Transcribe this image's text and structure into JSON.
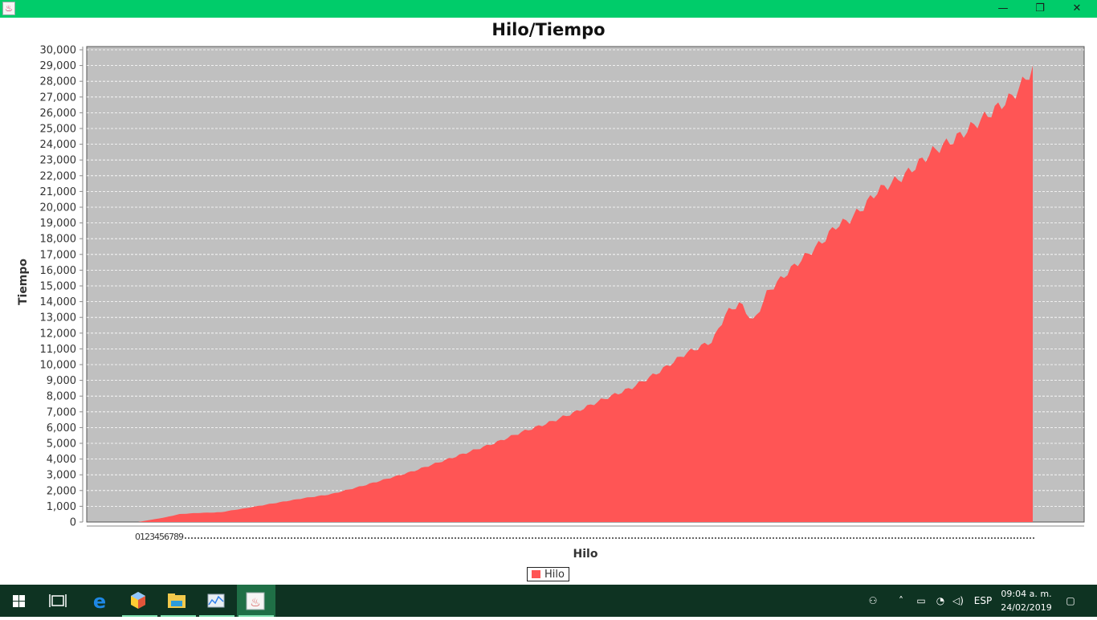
{
  "window": {
    "title": "",
    "minimize_label": "—",
    "restore_label": "❐",
    "close_label": "✕"
  },
  "chart_data": {
    "type": "area",
    "title": "Hilo/Tiempo",
    "xlabel": "Hilo",
    "ylabel": "Tiempo",
    "ylim": [
      0,
      30000
    ],
    "ytick_step": 1000,
    "grid": true,
    "legend_position": "bottom",
    "x_tick_labels": [
      "0",
      "1",
      "2",
      "3",
      "4",
      "5",
      "6",
      "7",
      "8",
      "9"
    ],
    "series": [
      {
        "name": "Hilo",
        "color": "#ff5555",
        "x_start": 0,
        "x_end": 259,
        "anchors": [
          [
            0,
            0
          ],
          [
            10,
            300
          ],
          [
            15,
            500
          ],
          [
            20,
            560
          ],
          [
            30,
            620
          ],
          [
            40,
            900
          ],
          [
            50,
            1200
          ],
          [
            60,
            1500
          ],
          [
            70,
            1750
          ],
          [
            80,
            2200
          ],
          [
            90,
            2700
          ],
          [
            100,
            3200
          ],
          [
            110,
            3800
          ],
          [
            120,
            4400
          ],
          [
            130,
            5000
          ],
          [
            140,
            5700
          ],
          [
            150,
            6300
          ],
          [
            160,
            7000
          ],
          [
            170,
            7800
          ],
          [
            180,
            8500
          ],
          [
            190,
            9500
          ],
          [
            200,
            10700
          ],
          [
            210,
            11500
          ],
          [
            215,
            13300
          ],
          [
            220,
            13900
          ],
          [
            225,
            12700
          ],
          [
            230,
            14600
          ],
          [
            240,
            16300
          ],
          [
            250,
            17800
          ],
          [
            255,
            18800
          ],
          [
            260,
            19200
          ],
          [
            265,
            20000
          ],
          [
            270,
            21000
          ],
          [
            280,
            22000
          ],
          [
            290,
            23500
          ],
          [
            300,
            24500
          ],
          [
            310,
            25800
          ],
          [
            320,
            27100
          ],
          [
            327,
            28800
          ]
        ]
      }
    ]
  },
  "taskbar": {
    "apps": [
      "windows-start-icon",
      "task-view-icon",
      "edge-browser-icon",
      "netbeans-icon",
      "file-explorer-icon",
      "task-manager-icon",
      "java-app-icon"
    ],
    "language": "ESP",
    "time": "09:04 a. m.",
    "date": "24/02/2019"
  }
}
